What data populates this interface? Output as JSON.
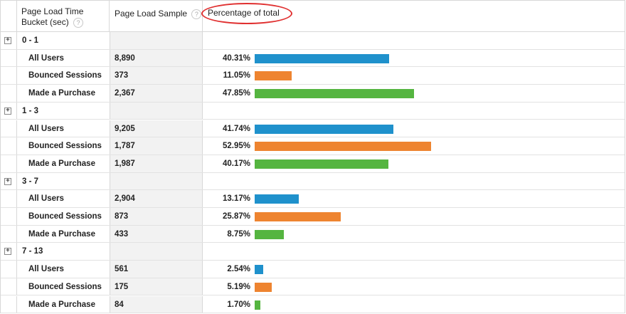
{
  "header": {
    "bucket_line1": "Page Load Time",
    "bucket_line2": "Bucket (sec)",
    "sample": "Page Load Sample",
    "percentage": "Percentage of total",
    "help": "?"
  },
  "colors": {
    "All Users": "#1f91cc",
    "Bounced Sessions": "#ee8430",
    "Made a Purchase": "#55b540"
  },
  "expand_glyph": "+",
  "groups": [
    {
      "bucket": "0 - 1",
      "rows": [
        {
          "segment": "All Users",
          "sample": "8,890",
          "pct_label": "40.31%",
          "pct": 40.31
        },
        {
          "segment": "Bounced Sessions",
          "sample": "373",
          "pct_label": "11.05%",
          "pct": 11.05
        },
        {
          "segment": "Made a Purchase",
          "sample": "2,367",
          "pct_label": "47.85%",
          "pct": 47.85
        }
      ]
    },
    {
      "bucket": "1 - 3",
      "rows": [
        {
          "segment": "All Users",
          "sample": "9,205",
          "pct_label": "41.74%",
          "pct": 41.74
        },
        {
          "segment": "Bounced Sessions",
          "sample": "1,787",
          "pct_label": "52.95%",
          "pct": 52.95
        },
        {
          "segment": "Made a Purchase",
          "sample": "1,987",
          "pct_label": "40.17%",
          "pct": 40.17
        }
      ]
    },
    {
      "bucket": "3 - 7",
      "rows": [
        {
          "segment": "All Users",
          "sample": "2,904",
          "pct_label": "13.17%",
          "pct": 13.17
        },
        {
          "segment": "Bounced Sessions",
          "sample": "873",
          "pct_label": "25.87%",
          "pct": 25.87
        },
        {
          "segment": "Made a Purchase",
          "sample": "433",
          "pct_label": "8.75%",
          "pct": 8.75
        }
      ]
    },
    {
      "bucket": "7 - 13",
      "rows": [
        {
          "segment": "All Users",
          "sample": "561",
          "pct_label": "2.54%",
          "pct": 2.54
        },
        {
          "segment": "Bounced Sessions",
          "sample": "175",
          "pct_label": "5.19%",
          "pct": 5.19
        },
        {
          "segment": "Made a Purchase",
          "sample": "84",
          "pct_label": "1.70%",
          "pct": 1.7
        }
      ]
    }
  ]
}
